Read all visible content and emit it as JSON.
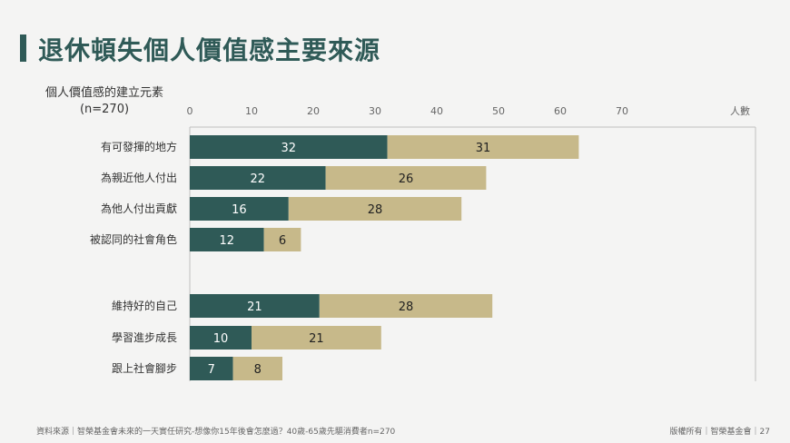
{
  "page": {
    "title": "退休頓失個人價值感主要來源",
    "footer_source": "資料來源｜智榮基金會未來的一天實任研究-想像你15年後會怎麼過？40歲-65歲先驅消費者n=270",
    "footer_right": "版權所有｜智榮基金會｜27"
  },
  "chart_data": {
    "type": "bar",
    "orientation": "horizontal",
    "stacked": true,
    "ylabel": "個人價值感的建立元素",
    "ylabel_sub": "(n=270)",
    "xlabel": "人數",
    "xlim": [
      0,
      70
    ],
    "xticks": [
      0,
      10,
      20,
      30,
      40,
      50,
      60,
      70
    ],
    "categories": [
      "有可發揮的地方",
      "為親近他人付出",
      "為他人付出貢獻",
      "被認同的社會角色",
      "維持好的自己",
      "學習進步成長",
      "跟上社會腳步"
    ],
    "group_break_after": 3,
    "series": [
      {
        "color": "#2f5a57",
        "values": [
          32,
          22,
          16,
          12,
          21,
          10,
          7
        ]
      },
      {
        "color": "#c7b98a",
        "values": [
          31,
          26,
          28,
          6,
          28,
          21,
          8
        ]
      }
    ],
    "grid": false
  }
}
